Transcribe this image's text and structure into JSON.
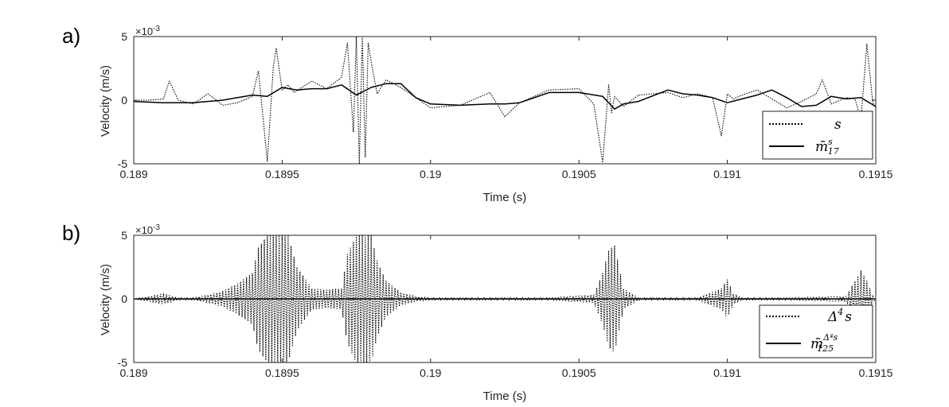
{
  "chart_data": [
    {
      "type": "line",
      "panel_label": "a)",
      "xlabel": "Time (s)",
      "ylabel": "Velocity (m/s)",
      "y_exponent": "×10^-3",
      "y_exponent_base": "×10",
      "y_exponent_power": "-3",
      "xlim": [
        0.189,
        0.1915
      ],
      "ylim": [
        -5,
        5
      ],
      "x_ticks": [
        0.189,
        0.1895,
        0.19,
        0.1905,
        0.191,
        0.1915
      ],
      "x_tick_labels": [
        "0.189",
        "0.1895",
        "0.19",
        "0.1905",
        "0.191",
        "0.1915"
      ],
      "y_ticks": [
        -5,
        0,
        5
      ],
      "y_tick_labels": [
        "-5",
        "0",
        "5"
      ],
      "grid": false,
      "legend_position": "bottom-right",
      "legend": [
        {
          "label": "s",
          "style": "dotted"
        },
        {
          "label": "m̄^s_17",
          "main": "m̄",
          "sup": "s",
          "sub": "17",
          "style": "solid"
        }
      ],
      "series": [
        {
          "name": "s",
          "style": "dotted",
          "x": [
            0.189,
            0.18905,
            0.1891,
            0.18912,
            0.18915,
            0.1892,
            0.18925,
            0.1893,
            0.18935,
            0.1894,
            0.18942,
            0.18945,
            0.18947,
            0.18948,
            0.1895,
            0.18952,
            0.18954,
            0.18956,
            0.1896,
            0.18965,
            0.1897,
            0.18972,
            0.18974,
            0.18975,
            0.18976,
            0.18977,
            0.18978,
            0.18979,
            0.1898,
            0.18982,
            0.18985,
            0.1899,
            0.18995,
            0.19,
            0.1901,
            0.1902,
            0.19025,
            0.1903,
            0.1904,
            0.1905,
            0.19055,
            0.19058,
            0.1906,
            0.19061,
            0.19062,
            0.19065,
            0.1907,
            0.1908,
            0.19085,
            0.1909,
            0.19095,
            0.19098,
            0.191,
            0.19102,
            0.19105,
            0.1911,
            0.1912,
            0.19125,
            0.1913,
            0.19132,
            0.19135,
            0.1914,
            0.19143,
            0.19145,
            0.19147,
            0.19149,
            0.1915
          ],
          "y": [
            0.0,
            0.0,
            0.1,
            1.5,
            0.0,
            -0.3,
            0.5,
            -0.4,
            -0.2,
            0.3,
            2.3,
            -4.8,
            2.5,
            4.1,
            0.8,
            1.2,
            0.6,
            0.9,
            1.5,
            0.9,
            1.8,
            4.5,
            -2.5,
            5.0,
            -5.0,
            5.0,
            -4.5,
            4.5,
            3.0,
            0.5,
            1.6,
            1.0,
            0.2,
            -0.6,
            -0.4,
            0.6,
            -1.3,
            -0.2,
            0.8,
            0.9,
            -0.3,
            -4.9,
            1.2,
            -1.0,
            0.3,
            -0.5,
            0.4,
            0.6,
            0.2,
            0.5,
            0.2,
            -2.8,
            0.5,
            0.1,
            0.4,
            0.8,
            -0.6,
            -0.1,
            0.5,
            1.6,
            -0.3,
            0.2,
            0.1,
            -1.5,
            4.4,
            -0.2,
            -0.6
          ]
        },
        {
          "name": "m̄^s_17",
          "style": "solid",
          "x": [
            0.189,
            0.1891,
            0.1892,
            0.1893,
            0.18935,
            0.1894,
            0.18945,
            0.1895,
            0.18955,
            0.1896,
            0.18965,
            0.1897,
            0.18975,
            0.1898,
            0.18985,
            0.1899,
            0.18995,
            0.19,
            0.1901,
            0.1902,
            0.19025,
            0.1903,
            0.1904,
            0.1905,
            0.19058,
            0.19062,
            0.19065,
            0.1907,
            0.1908,
            0.19085,
            0.1909,
            0.19095,
            0.191,
            0.19105,
            0.1911,
            0.19115,
            0.1912,
            0.19125,
            0.1913,
            0.19135,
            0.1914,
            0.19145,
            0.1915
          ],
          "y": [
            -0.1,
            -0.2,
            -0.2,
            0.0,
            0.2,
            0.4,
            0.3,
            1.0,
            0.8,
            0.9,
            0.9,
            1.2,
            0.4,
            1.0,
            1.3,
            1.3,
            0.2,
            -0.3,
            -0.4,
            -0.3,
            -0.3,
            -0.2,
            0.6,
            0.6,
            0.3,
            -0.7,
            -0.3,
            -0.1,
            0.8,
            0.5,
            0.4,
            0.2,
            -0.2,
            0.1,
            0.4,
            0.8,
            0.2,
            -0.5,
            -0.4,
            0.3,
            0.1,
            0.2,
            -0.5
          ]
        }
      ]
    },
    {
      "type": "line",
      "panel_label": "b)",
      "xlabel": "Time (s)",
      "ylabel": "Velocity (m/s)",
      "y_exponent": "×10^-3",
      "y_exponent_base": "×10",
      "y_exponent_power": "-3",
      "xlim": [
        0.189,
        0.1915
      ],
      "ylim": [
        -5,
        5
      ],
      "x_ticks": [
        0.189,
        0.1895,
        0.19,
        0.1905,
        0.191,
        0.1915
      ],
      "x_tick_labels": [
        "0.189",
        "0.1895",
        "0.19",
        "0.1905",
        "0.191",
        "0.1915"
      ],
      "y_ticks": [
        -5,
        0,
        5
      ],
      "y_tick_labels": [
        "-5",
        "0",
        "5"
      ],
      "grid": false,
      "legend_position": "bottom-right",
      "legend": [
        {
          "label": "Δ^4 s",
          "main": "Δ",
          "sup": "4",
          "tail": "s",
          "style": "dotted"
        },
        {
          "label": "m̄^(Δ^4 s)_125",
          "main": "m̄",
          "sup": "Δ⁴s",
          "sub": "125",
          "style": "solid"
        }
      ],
      "series": [
        {
          "name": "Δ^4 s",
          "style": "dotted",
          "envelope": true,
          "x": [
            0.189,
            0.18905,
            0.1891,
            0.18915,
            0.1892,
            0.18925,
            0.1893,
            0.18935,
            0.1894,
            0.18942,
            0.18945,
            0.18947,
            0.1895,
            0.18952,
            0.18955,
            0.1896,
            0.18965,
            0.1897,
            0.18972,
            0.18975,
            0.18978,
            0.1898,
            0.18982,
            0.18985,
            0.1899,
            0.18995,
            0.19,
            0.1902,
            0.1904,
            0.19055,
            0.19058,
            0.1906,
            0.19062,
            0.19065,
            0.1907,
            0.1909,
            0.19098,
            0.191,
            0.19102,
            0.19105,
            0.1912,
            0.1914,
            0.19145,
            0.19147,
            0.19149,
            0.1915
          ],
          "amplitude": [
            0.0,
            0.2,
            0.4,
            0.1,
            0.1,
            0.3,
            0.6,
            1.2,
            2.0,
            4.0,
            5.0,
            5.0,
            5.0,
            5.0,
            2.5,
            0.8,
            0.7,
            0.8,
            3.5,
            5.0,
            5.0,
            5.0,
            3.0,
            1.4,
            0.5,
            0.2,
            0.1,
            0.1,
            0.1,
            0.3,
            2.0,
            3.8,
            4.2,
            0.8,
            0.1,
            0.1,
            0.8,
            1.5,
            0.4,
            0.1,
            0.1,
            0.2,
            2.2,
            1.4,
            0.3,
            0.0
          ]
        },
        {
          "name": "m̄^(Δ^4 s)_125",
          "style": "solid",
          "x": [
            0.189,
            0.1915
          ],
          "y": [
            0.0,
            0.0
          ]
        }
      ]
    }
  ]
}
